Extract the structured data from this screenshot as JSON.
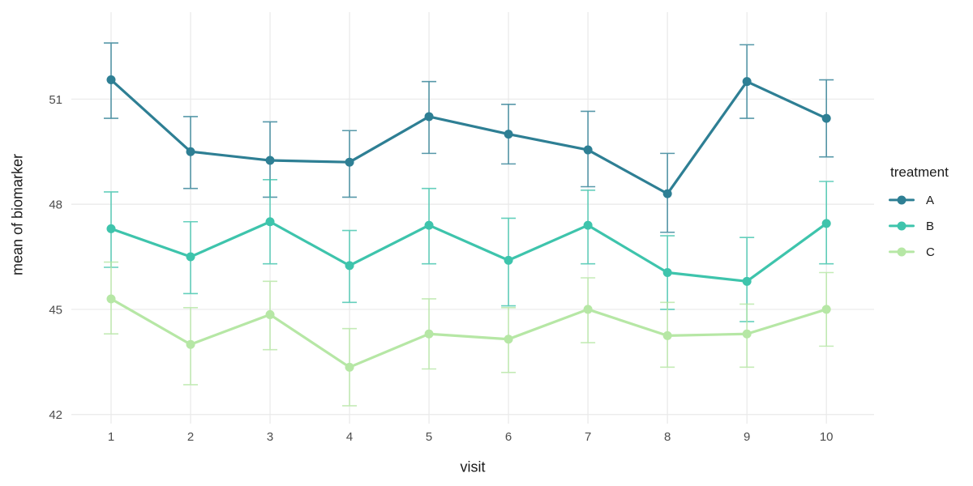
{
  "chart_data": {
    "type": "line",
    "title": "",
    "xlabel": "visit",
    "ylabel": "mean of biomarker",
    "legend_title": "treatment",
    "legend_position": "right",
    "grid": "major-only",
    "error_bars": true,
    "background_color": "#ffffff",
    "gridline_color": "#e9e9e9",
    "tick_label_color": "#4d4d4d",
    "axis_title_color": "#1a1a1a",
    "x": [
      1,
      2,
      3,
      4,
      5,
      6,
      7,
      8,
      9,
      10
    ],
    "x_tick_labels": [
      "1",
      "2",
      "3",
      "4",
      "5",
      "6",
      "7",
      "8",
      "9",
      "10"
    ],
    "y_ticks": [
      42,
      45,
      48,
      51
    ],
    "xlim": [
      0.5,
      10.6
    ],
    "ylim": [
      41.74,
      53.48
    ],
    "series": [
      {
        "name": "A",
        "color": "#2e7f94",
        "values": [
          51.55,
          49.5,
          49.25,
          49.2,
          50.5,
          50.0,
          49.55,
          48.3,
          51.5,
          50.45
        ],
        "lower": [
          50.45,
          48.45,
          48.2,
          48.2,
          49.45,
          49.15,
          48.5,
          47.2,
          50.45,
          49.35
        ],
        "upper": [
          52.6,
          50.5,
          50.35,
          50.1,
          51.5,
          50.85,
          50.65,
          49.45,
          52.55,
          51.55
        ]
      },
      {
        "name": "B",
        "color": "#3ec4ac",
        "values": [
          47.3,
          46.5,
          47.5,
          46.25,
          47.4,
          46.4,
          47.4,
          46.05,
          45.8,
          47.45
        ],
        "lower": [
          46.2,
          45.45,
          46.3,
          45.2,
          46.3,
          45.1,
          46.3,
          45.0,
          44.65,
          46.3
        ],
        "upper": [
          48.35,
          47.5,
          48.7,
          47.25,
          48.45,
          47.6,
          48.4,
          47.1,
          47.05,
          48.65
        ]
      },
      {
        "name": "C",
        "color": "#b6e7a5",
        "values": [
          45.3,
          44.0,
          44.85,
          43.35,
          44.3,
          44.15,
          45.0,
          44.25,
          44.3,
          45.0
        ],
        "lower": [
          44.3,
          42.85,
          43.85,
          42.25,
          43.3,
          43.2,
          44.05,
          43.35,
          43.35,
          43.95
        ],
        "upper": [
          46.35,
          45.05,
          45.8,
          44.45,
          45.3,
          45.05,
          45.9,
          45.2,
          45.15,
          46.05
        ]
      }
    ]
  }
}
